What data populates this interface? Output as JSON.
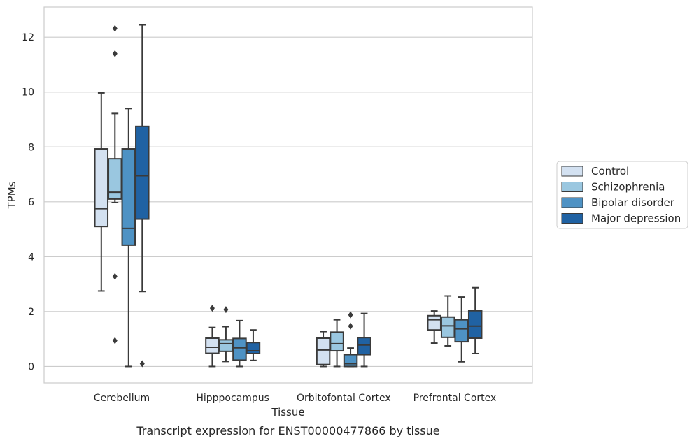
{
  "chart_data": {
    "type": "boxplot",
    "title": "",
    "caption": "Transcript expression for ENST00000477866 by tissue",
    "xlabel": "Tissue",
    "ylabel": "TPMs",
    "ylim": [
      -0.6,
      13.1
    ],
    "yticks": [
      0,
      2,
      4,
      6,
      8,
      10,
      12
    ],
    "grid": "horizontal",
    "legend_position": "right",
    "categories": [
      "Cerebellum",
      "Hipppocampus",
      "Orbitofontal Cortex",
      "Prefrontal Cortex"
    ],
    "series": [
      {
        "name": "Control",
        "color": "#d3e1f1",
        "boxes": [
          {
            "whislo": 2.75,
            "q1": 5.1,
            "med": 5.75,
            "q3": 7.93,
            "whishi": 9.97,
            "fliers": []
          },
          {
            "whislo": 0.0,
            "q1": 0.48,
            "med": 0.7,
            "q3": 1.03,
            "whishi": 1.42,
            "fliers": [
              2.12
            ]
          },
          {
            "whislo": 0.0,
            "q1": 0.07,
            "med": 0.6,
            "q3": 1.03,
            "whishi": 1.27,
            "fliers": []
          },
          {
            "whislo": 0.85,
            "q1": 1.33,
            "med": 1.7,
            "q3": 1.85,
            "whishi": 2.02,
            "fliers": []
          }
        ]
      },
      {
        "name": "Schizophrenia",
        "color": "#9ac7e0",
        "boxes": [
          {
            "whislo": 5.97,
            "q1": 6.1,
            "med": 6.35,
            "q3": 7.57,
            "whishi": 9.22,
            "fliers": [
              3.28,
              0.94,
              11.4,
              12.32
            ]
          },
          {
            "whislo": 0.18,
            "q1": 0.55,
            "med": 0.83,
            "q3": 0.97,
            "whishi": 1.45,
            "fliers": [
              2.07
            ]
          },
          {
            "whislo": 0.0,
            "q1": 0.57,
            "med": 0.83,
            "q3": 1.25,
            "whishi": 1.7,
            "fliers": []
          },
          {
            "whislo": 0.75,
            "q1": 1.06,
            "med": 1.48,
            "q3": 1.8,
            "whishi": 2.57,
            "fliers": []
          }
        ]
      },
      {
        "name": "Bipolar disorder",
        "color": "#4e92c4",
        "boxes": [
          {
            "whislo": 0.0,
            "q1": 4.42,
            "med": 5.03,
            "q3": 7.93,
            "whishi": 9.4,
            "fliers": []
          },
          {
            "whislo": 0.0,
            "q1": 0.23,
            "med": 0.68,
            "q3": 1.02,
            "whishi": 1.67,
            "fliers": []
          },
          {
            "whislo": 0.0,
            "q1": 0.0,
            "med": 0.1,
            "q3": 0.43,
            "whishi": 0.67,
            "fliers": [
              1.47,
              1.88
            ]
          },
          {
            "whislo": 0.17,
            "q1": 0.9,
            "med": 1.37,
            "q3": 1.7,
            "whishi": 2.53,
            "fliers": []
          }
        ]
      },
      {
        "name": "Major depression",
        "color": "#2062a3",
        "boxes": [
          {
            "whislo": 2.73,
            "q1": 5.37,
            "med": 6.95,
            "q3": 8.75,
            "whishi": 12.45,
            "fliers": [
              0.1
            ]
          },
          {
            "whislo": 0.22,
            "q1": 0.47,
            "med": 0.57,
            "q3": 0.87,
            "whishi": 1.33,
            "fliers": []
          },
          {
            "whislo": 0.0,
            "q1": 0.43,
            "med": 0.78,
            "q3": 1.05,
            "whishi": 1.93,
            "fliers": []
          },
          {
            "whislo": 0.47,
            "q1": 1.03,
            "med": 1.47,
            "q3": 2.03,
            "whishi": 2.87,
            "fliers": []
          }
        ]
      }
    ]
  }
}
